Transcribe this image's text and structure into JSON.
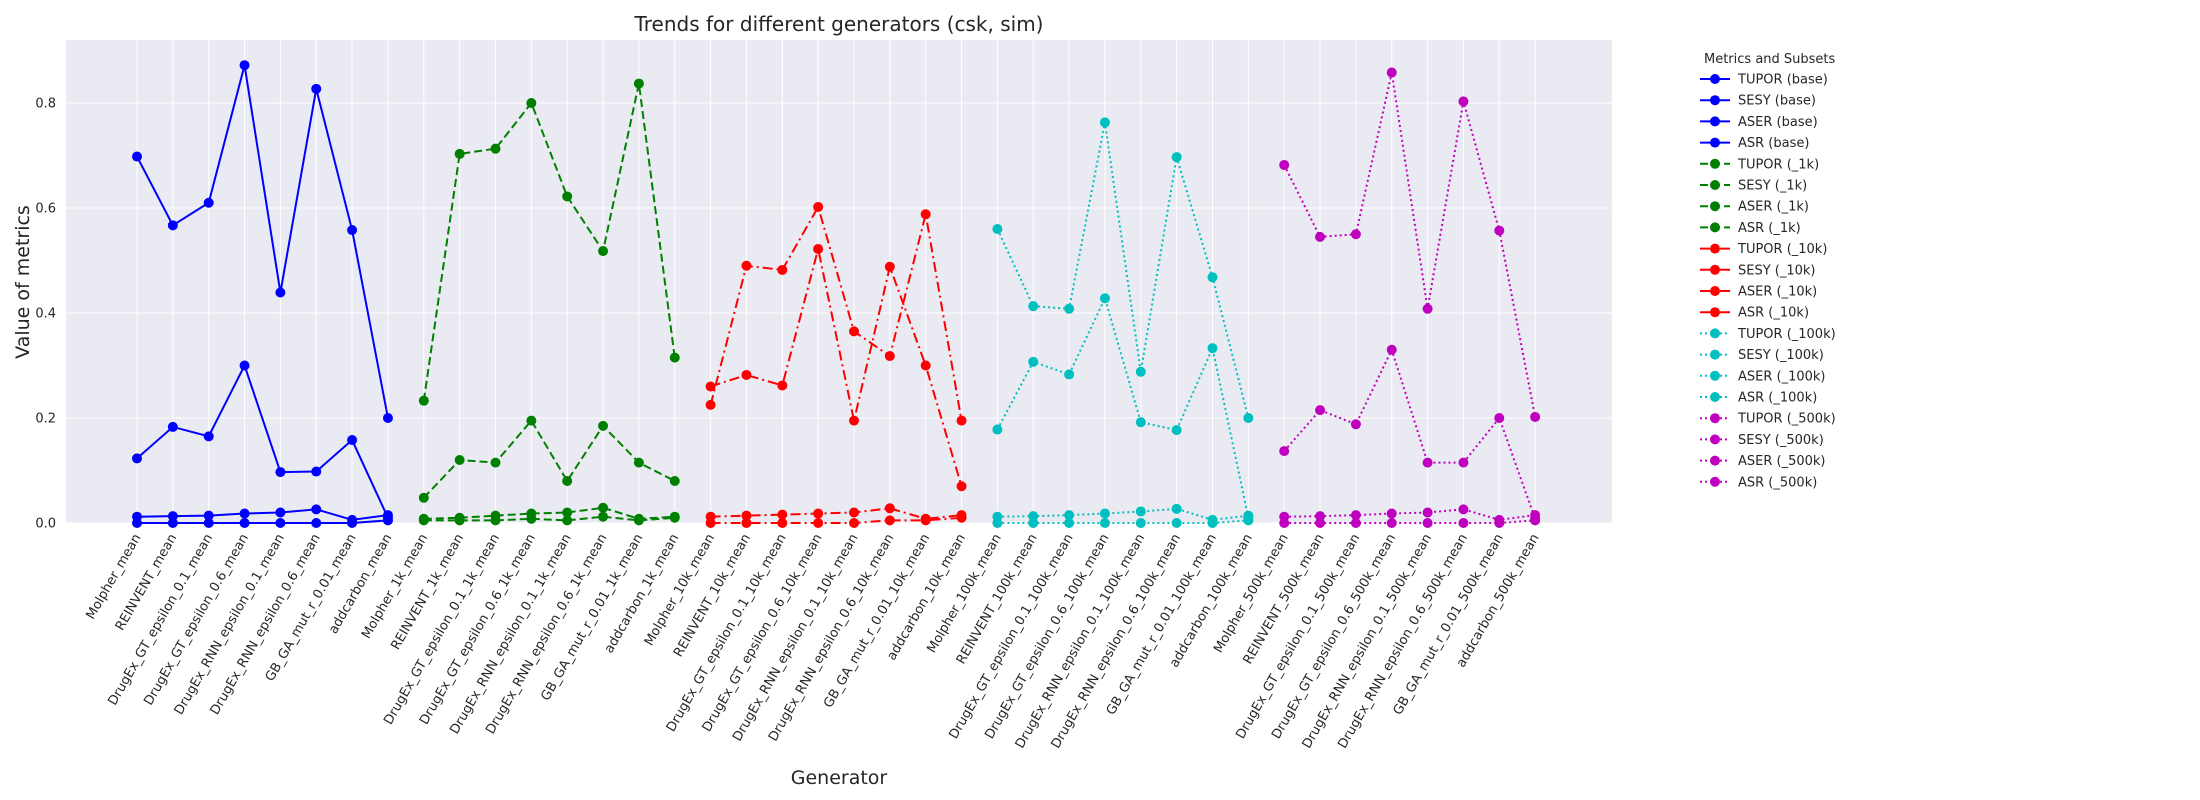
{
  "chart_data": {
    "type": "line",
    "title": "Trends for different generators (csk, sim)",
    "xlabel": "Generator",
    "ylabel": "Value of metrics",
    "ylim": [
      0,
      0.92
    ],
    "yticks": [
      "0.0",
      "0.2",
      "0.4",
      "0.6",
      "0.8"
    ],
    "ytick_values": [
      0,
      0.2,
      0.4,
      0.6,
      0.8
    ],
    "grid": true,
    "legend_title": "Metrics and Subsets",
    "legend_position": "outside-right",
    "categories": [
      "Molpher_mean",
      "REINVENT_mean",
      "DrugEx_GT_epsilon_0.1_mean",
      "DrugEx_GT_epsilon_0.6_mean",
      "DrugEx_RNN_epsilon_0.1_mean",
      "DrugEx_RNN_epsilon_0.6_mean",
      "GB_GA_mut_r_0.01_mean",
      "addcarbon_mean",
      "Molpher_1k_mean",
      "REINVENT_1k_mean",
      "DrugEx_GT_epsilon_0.1_1k_mean",
      "DrugEx_GT_epsilon_0.6_1k_mean",
      "DrugEx_RNN_epsilon_0.1_1k_mean",
      "DrugEx_RNN_epsilon_0.6_1k_mean",
      "GB_GA_mut_r_0.01_1k_mean",
      "addcarbon_1k_mean",
      "Molpher_10k_mean",
      "REINVENT_10k_mean",
      "DrugEx_GT_epsilon_0.1_10k_mean",
      "DrugEx_GT_epsilon_0.6_10k_mean",
      "DrugEx_RNN_epsilon_0.1_10k_mean",
      "DrugEx_RNN_epsilon_0.6_10k_mean",
      "GB_GA_mut_r_0.01_10k_mean",
      "addcarbon_10k_mean",
      "Molpher_100k_mean",
      "REINVENT_100k_mean",
      "DrugEx_GT_epsilon_0.1_100k_mean",
      "DrugEx_GT_epsilon_0.6_100k_mean",
      "DrugEx_RNN_epsilon_0.1_100k_mean",
      "DrugEx_RNN_epsilon_0.6_100k_mean",
      "GB_GA_mut_r_0.01_100k_mean",
      "addcarbon_100k_mean",
      "Molpher_500k_mean",
      "REINVENT_500k_mean",
      "DrugEx_GT_epsilon_0.1_500k_mean",
      "DrugEx_GT_epsilon_0.6_500k_mean",
      "DrugEx_RNN_epsilon_0.1_500k_mean",
      "DrugEx_RNN_epsilon_0.6_500k_mean",
      "GB_GA_mut_r_0.01_500k_mean",
      "addcarbon_500k_mean"
    ],
    "groups": [
      {
        "name": "base",
        "color": "#0000ff",
        "dash": "solid",
        "start": 0,
        "series": [
          {
            "name": "TUPOR (base)",
            "values": [
              0.698,
              0.567,
              0.61,
              0.872,
              0.439,
              0.827,
              0.558,
              0.2
            ]
          },
          {
            "name": "SESY (base)",
            "values": [
              0.123,
              0.183,
              0.165,
              0.3,
              0.097,
              0.098,
              0.158,
              0.01
            ]
          },
          {
            "name": "ASER (base)",
            "values": [
              0.012,
              0.013,
              0.014,
              0.018,
              0.02,
              0.026,
              0.006,
              0.015
            ]
          },
          {
            "name": "ASR (base)",
            "values": [
              0.0,
              0.0,
              0.0,
              0.0,
              0.0,
              0.0,
              0.0,
              0.005
            ]
          }
        ]
      },
      {
        "name": "_1k",
        "color": "#008000",
        "dash": "dashed",
        "start": 8,
        "series": [
          {
            "name": "TUPOR (_1k)",
            "values": [
              0.233,
              0.703,
              0.713,
              0.8,
              0.622,
              0.518,
              0.837,
              0.315
            ]
          },
          {
            "name": "SESY (_1k)",
            "values": [
              0.048,
              0.12,
              0.115,
              0.195,
              0.08,
              0.185,
              0.115,
              0.08
            ]
          },
          {
            "name": "ASER (_1k)",
            "values": [
              0.008,
              0.01,
              0.014,
              0.018,
              0.02,
              0.029,
              0.008,
              0.012
            ]
          },
          {
            "name": "ASR (_1k)",
            "values": [
              0.005,
              0.005,
              0.005,
              0.008,
              0.005,
              0.012,
              0.005,
              0.01
            ]
          }
        ]
      },
      {
        "name": "_10k",
        "color": "#ff0000",
        "dash": "dashdot",
        "start": 16,
        "series": [
          {
            "name": "TUPOR (_10k)",
            "values": [
              0.225,
              0.49,
              0.482,
              0.602,
              0.365,
              0.318,
              0.588,
              0.195
            ]
          },
          {
            "name": "SESY (_10k)",
            "values": [
              0.26,
              0.282,
              0.262,
              0.522,
              0.195,
              0.488,
              0.3,
              0.07
            ]
          },
          {
            "name": "ASER (_10k)",
            "values": [
              0.012,
              0.014,
              0.016,
              0.018,
              0.02,
              0.028,
              0.008,
              0.015
            ]
          },
          {
            "name": "ASR (_10k)",
            "values": [
              0.0,
              0.0,
              0.0,
              0.0,
              0.0,
              0.005,
              0.005,
              0.01
            ]
          }
        ]
      },
      {
        "name": "_100k",
        "color": "#00bfbf",
        "dash": "dotted",
        "start": 24,
        "series": [
          {
            "name": "TUPOR (_100k)",
            "values": [
              0.56,
              0.413,
              0.408,
              0.763,
              0.288,
              0.697,
              0.468,
              0.2
            ]
          },
          {
            "name": "SESY (_100k)",
            "values": [
              0.178,
              0.307,
              0.283,
              0.428,
              0.192,
              0.177,
              0.333,
              0.01
            ]
          },
          {
            "name": "ASER (_100k)",
            "values": [
              0.012,
              0.013,
              0.015,
              0.018,
              0.022,
              0.027,
              0.006,
              0.014
            ]
          },
          {
            "name": "ASR (_100k)",
            "values": [
              0.0,
              0.0,
              0.0,
              0.0,
              0.0,
              0.0,
              0.0,
              0.005
            ]
          }
        ]
      },
      {
        "name": "_500k",
        "color": "#bf00bf",
        "dash": "dotted",
        "start": 32,
        "series": [
          {
            "name": "TUPOR (_500k)",
            "values": [
              0.682,
              0.545,
              0.55,
              0.858,
              0.408,
              0.803,
              0.557,
              0.202
            ]
          },
          {
            "name": "SESY (_500k)",
            "values": [
              0.137,
              0.215,
              0.188,
              0.33,
              0.115,
              0.115,
              0.2,
              0.008
            ]
          },
          {
            "name": "ASER (_500k)",
            "values": [
              0.012,
              0.013,
              0.015,
              0.018,
              0.02,
              0.026,
              0.006,
              0.015
            ]
          },
          {
            "name": "ASR (_500k)",
            "values": [
              0.0,
              0.0,
              0.0,
              0.0,
              0.0,
              0.0,
              0.0,
              0.005
            ]
          }
        ]
      }
    ]
  }
}
